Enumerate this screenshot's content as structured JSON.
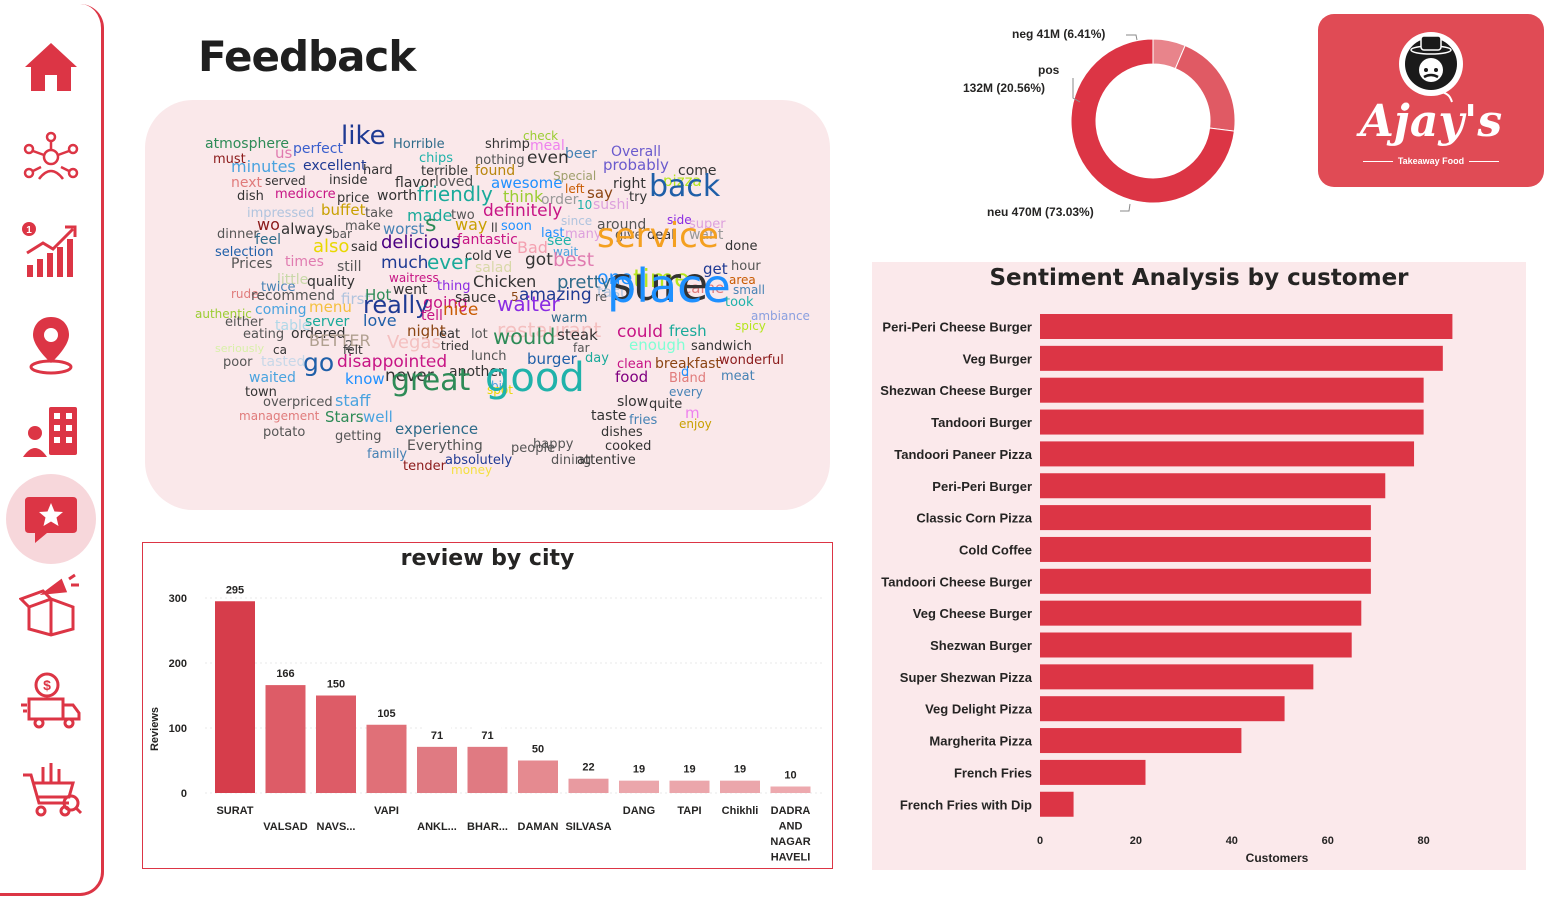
{
  "page": {
    "title": "Feedback"
  },
  "nav": [
    {
      "name": "home-icon"
    },
    {
      "name": "customers-icon"
    },
    {
      "name": "sales-trend-icon"
    },
    {
      "name": "location-icon"
    },
    {
      "name": "employees-icon"
    },
    {
      "name": "feedback-icon"
    },
    {
      "name": "marketing-icon"
    },
    {
      "name": "delivery-icon"
    },
    {
      "name": "inventory-icon"
    }
  ],
  "logo": {
    "brand": "Ajay's",
    "tagline": "Takeaway Food"
  },
  "donut": {
    "slices": [
      {
        "label": "neg",
        "value_text": "41M",
        "pct_text": "(6.41%)",
        "pct": 6.41,
        "color": "#e8848b"
      },
      {
        "label": "pos",
        "value_text": "132M",
        "pct_text": "(20.56%)",
        "pct": 20.56,
        "color": "#e05a64"
      },
      {
        "label": "neu",
        "value_text": "470M",
        "pct_text": "(73.03%)",
        "pct": 73.03,
        "color": "#dc3545"
      }
    ],
    "labels": {
      "neg": "neg 41M (6.41%)",
      "pos_name": "pos",
      "pos_value": "132M (20.56%)",
      "neu": "neu 470M (73.03%)"
    }
  },
  "wordcloud": {
    "words": [
      {
        "t": "atmosphere",
        "c": "#2e8b57"
      },
      {
        "t": "like",
        "c": "#1f3a93"
      },
      {
        "t": "Horrible",
        "c": "#2e6b8a"
      },
      {
        "t": "shrimp",
        "c": "#333"
      },
      {
        "t": "check",
        "c": "#9acd32"
      },
      {
        "t": "meal",
        "c": "#ee82ee"
      },
      {
        "t": "beer",
        "c": "#4682b4"
      },
      {
        "t": "Overall",
        "c": "#6a5acd"
      },
      {
        "t": "must",
        "c": "#8b1a1a"
      },
      {
        "t": "us",
        "c": "#e07bb0"
      },
      {
        "t": "perfect",
        "c": "#3a5fcd"
      },
      {
        "t": "chips",
        "c": "#20b2aa"
      },
      {
        "t": "nothing",
        "c": "#555"
      },
      {
        "t": "even",
        "c": "#333"
      },
      {
        "t": "probably",
        "c": "#6a5acd"
      },
      {
        "t": "minutes",
        "c": "#4aa3df"
      },
      {
        "t": "excellent",
        "c": "#1f3a93"
      },
      {
        "t": "hard",
        "c": "#333"
      },
      {
        "t": "terrible",
        "c": "#333"
      },
      {
        "t": "found",
        "c": "#b8860b"
      },
      {
        "t": "Special",
        "c": "#9e9e6a"
      },
      {
        "t": "come",
        "c": "#333"
      },
      {
        "t": "next",
        "c": "#e07b7b"
      },
      {
        "t": "served",
        "c": "#333"
      },
      {
        "t": "inside",
        "c": "#333"
      },
      {
        "t": "flavor",
        "c": "#333"
      },
      {
        "t": "loved",
        "c": "#555"
      },
      {
        "t": "awesome",
        "c": "#1e90ff"
      },
      {
        "t": "left",
        "c": "#c85a00"
      },
      {
        "t": "right",
        "c": "#333"
      },
      {
        "t": "pizza",
        "c": "#b5e61d"
      },
      {
        "t": "dish",
        "c": "#333"
      },
      {
        "t": "mediocre",
        "c": "#c71585"
      },
      {
        "t": "price",
        "c": "#333"
      },
      {
        "t": "worth",
        "c": "#333"
      },
      {
        "t": "friendly",
        "c": "#1aaa9a"
      },
      {
        "t": "think",
        "c": "#9acd32"
      },
      {
        "t": "order",
        "c": "#999"
      },
      {
        "t": "say",
        "c": "#8b4513"
      },
      {
        "t": "try",
        "c": "#333"
      },
      {
        "t": "back",
        "c": "#1f5fa8"
      },
      {
        "t": "impressed",
        "c": "#b0c4de"
      },
      {
        "t": "buffet",
        "c": "#c8a000"
      },
      {
        "t": "take",
        "c": "#555"
      },
      {
        "t": "made",
        "c": "#1aaa9a"
      },
      {
        "t": "two",
        "c": "#555"
      },
      {
        "t": "definitely",
        "c": "#c71585"
      },
      {
        "t": "10",
        "c": "#20b2aa"
      },
      {
        "t": "sushi",
        "c": "#dda0dd"
      },
      {
        "t": "dinner",
        "c": "#555"
      },
      {
        "t": "wo",
        "c": "#8b1a1a"
      },
      {
        "t": "always",
        "c": "#333"
      },
      {
        "t": "bar",
        "c": "#555"
      },
      {
        "t": "make",
        "c": "#555"
      },
      {
        "t": "worst",
        "c": "#4682b4"
      },
      {
        "t": "s",
        "c": "#2e8b57"
      },
      {
        "t": "way",
        "c": "#c8a000"
      },
      {
        "t": "ll",
        "c": "#333"
      },
      {
        "t": "soon",
        "c": "#1e90ff"
      },
      {
        "t": "since",
        "c": "#b0c4de"
      },
      {
        "t": "around",
        "c": "#555"
      },
      {
        "t": "side",
        "c": "#8a2be2"
      },
      {
        "t": "super",
        "c": "#dda0dd"
      },
      {
        "t": "feel",
        "c": "#2e6b8a"
      },
      {
        "t": "fantastic",
        "c": "#c71585"
      },
      {
        "t": "last",
        "c": "#1e90ff"
      },
      {
        "t": "many",
        "c": "#dda0dd"
      },
      {
        "t": "give",
        "c": "#555"
      },
      {
        "t": "deal",
        "c": "#333"
      },
      {
        "t": "want",
        "c": "#999"
      },
      {
        "t": "done",
        "c": "#333"
      },
      {
        "t": "selection",
        "c": "#1f5fa8"
      },
      {
        "t": "also",
        "c": "#e8d800"
      },
      {
        "t": "said",
        "c": "#333"
      },
      {
        "t": "delicious",
        "c": "#4b0082"
      },
      {
        "t": "cold",
        "c": "#333"
      },
      {
        "t": "ve",
        "c": "#333"
      },
      {
        "t": "Bad",
        "c": "#f4a0b0"
      },
      {
        "t": "wait",
        "c": "#4aa3df"
      },
      {
        "t": "see",
        "c": "#20b2aa"
      },
      {
        "t": "service",
        "c": "#f4a020"
      },
      {
        "t": "Prices",
        "c": "#555"
      },
      {
        "t": "times",
        "c": "#e07bb0"
      },
      {
        "t": "still",
        "c": "#555"
      },
      {
        "t": "much",
        "c": "#1f3a93"
      },
      {
        "t": "ever",
        "c": "#1aaa9a"
      },
      {
        "t": "salad",
        "c": "#d8d8a8"
      },
      {
        "t": "got",
        "c": "#333"
      },
      {
        "t": "best",
        "c": "#e07bb0"
      },
      {
        "t": "hour",
        "c": "#555"
      },
      {
        "t": "little",
        "c": "#c8d8a8"
      },
      {
        "t": "waitress",
        "c": "#c71585"
      },
      {
        "t": "one",
        "c": "#1e90ff"
      },
      {
        "t": "time",
        "c": "#b5e61d"
      },
      {
        "t": "get",
        "c": "#1f3a93"
      },
      {
        "t": "area",
        "c": "#c85a00"
      },
      {
        "t": "rude",
        "c": "#e07b7b"
      },
      {
        "t": "twice",
        "c": "#4682b4"
      },
      {
        "t": "quality",
        "c": "#333"
      },
      {
        "t": "went",
        "c": "#333"
      },
      {
        "t": "thing",
        "c": "#8a2be2"
      },
      {
        "t": "Chicken",
        "c": "#333"
      },
      {
        "t": "pretty",
        "c": "#2e6b8a"
      },
      {
        "t": "tasty",
        "c": "#b0c4de"
      },
      {
        "t": "came",
        "c": "#e07b7b"
      },
      {
        "t": "small",
        "c": "#4682b4"
      },
      {
        "t": "recommend",
        "c": "#555"
      },
      {
        "t": "first",
        "c": "#b0c4de"
      },
      {
        "t": "Hot",
        "c": "#2e8b57"
      },
      {
        "t": "going",
        "c": "#c71585"
      },
      {
        "t": "sauce",
        "c": "#333"
      },
      {
        "t": "5",
        "c": "#8b4513"
      },
      {
        "t": "amazing",
        "c": "#1f3a93"
      },
      {
        "t": "re",
        "c": "#555"
      },
      {
        "t": "sure",
        "c": "#333"
      },
      {
        "t": "authentic",
        "c": "#9acd32"
      },
      {
        "t": "coming",
        "c": "#4aa3df"
      },
      {
        "t": "menu",
        "c": "#f4c040"
      },
      {
        "t": "really",
        "c": "#1f3a93"
      },
      {
        "t": "tell",
        "c": "#c71585"
      },
      {
        "t": "nice",
        "c": "#c85a00"
      },
      {
        "t": "waiter",
        "c": "#8a2be2"
      },
      {
        "t": "warm",
        "c": "#2e6b8a"
      },
      {
        "t": "place",
        "c": "#1e90ff"
      },
      {
        "t": "took",
        "c": "#20b2aa"
      },
      {
        "t": "ambiance",
        "c": "#8a9fdf"
      },
      {
        "t": "either",
        "c": "#555"
      },
      {
        "t": "table",
        "c": "#b0d8e8"
      },
      {
        "t": "server",
        "c": "#1aaa9a"
      },
      {
        "t": "love",
        "c": "#1f5fa8"
      },
      {
        "t": "restaurant",
        "c": "#f4c0c0"
      },
      {
        "t": "spicy",
        "c": "#b5e61d"
      },
      {
        "t": "eating",
        "c": "#555"
      },
      {
        "t": "ordered",
        "c": "#333"
      },
      {
        "t": "2",
        "c": "#555"
      },
      {
        "t": "night",
        "c": "#8b4513"
      },
      {
        "t": "eat",
        "c": "#333"
      },
      {
        "t": "lot",
        "c": "#555"
      },
      {
        "t": "would",
        "c": "#2e8b57"
      },
      {
        "t": "steak",
        "c": "#333"
      },
      {
        "t": "could",
        "c": "#c71585"
      },
      {
        "t": "fresh",
        "c": "#1aaa9a"
      },
      {
        "t": "seriously",
        "c": "#d8f0a8"
      },
      {
        "t": "ca",
        "c": "#333"
      },
      {
        "t": "BETTER",
        "c": "#b0a090"
      },
      {
        "t": "felt",
        "c": "#333"
      },
      {
        "t": "Vegas",
        "c": "#f4c0c0"
      },
      {
        "t": "tried",
        "c": "#333"
      },
      {
        "t": "far",
        "c": "#555"
      },
      {
        "t": "enough",
        "c": "#7fffd4"
      },
      {
        "t": "sandwich",
        "c": "#333"
      },
      {
        "t": "poor",
        "c": "#555"
      },
      {
        "t": "tasted",
        "c": "#c8d8e8"
      },
      {
        "t": "disappointed",
        "c": "#c71585"
      },
      {
        "t": "lunch",
        "c": "#555"
      },
      {
        "t": "burger",
        "c": "#1f5fa8"
      },
      {
        "t": "day",
        "c": "#1aaa9a"
      },
      {
        "t": "clean",
        "c": "#c71585"
      },
      {
        "t": "breakfast",
        "c": "#8b4513"
      },
      {
        "t": "wonderful",
        "c": "#8b1a1a"
      },
      {
        "t": "waited",
        "c": "#4aa3df"
      },
      {
        "t": "go",
        "c": "#1f5fa8"
      },
      {
        "t": "know",
        "c": "#1e90ff"
      },
      {
        "t": "never",
        "c": "#333"
      },
      {
        "t": "another",
        "c": "#333"
      },
      {
        "t": "food",
        "c": "#800080"
      },
      {
        "t": "Bland",
        "c": "#e07b7b"
      },
      {
        "t": "d",
        "c": "#1e90ff"
      },
      {
        "t": "meat",
        "c": "#4682b4"
      },
      {
        "t": "town",
        "c": "#333"
      },
      {
        "t": "bit",
        "c": "#4aa3df"
      },
      {
        "t": "every",
        "c": "#4682b4"
      },
      {
        "t": "overpriced",
        "c": "#555"
      },
      {
        "t": "staff",
        "c": "#4aa3df"
      },
      {
        "t": "great",
        "c": "#2e8b57"
      },
      {
        "t": "spot",
        "c": "#e8d800"
      },
      {
        "t": "slow",
        "c": "#333"
      },
      {
        "t": "quite",
        "c": "#333"
      },
      {
        "t": "management",
        "c": "#e07b7b"
      },
      {
        "t": "Stars",
        "c": "#2e8b57"
      },
      {
        "t": "well",
        "c": "#4aa3df"
      },
      {
        "t": "good",
        "c": "#20b2aa"
      },
      {
        "t": "taste",
        "c": "#333"
      },
      {
        "t": "fries",
        "c": "#4682b4"
      },
      {
        "t": "m",
        "c": "#ee82ee"
      },
      {
        "t": "enjoy",
        "c": "#c8a000"
      },
      {
        "t": "potato",
        "c": "#555"
      },
      {
        "t": "getting",
        "c": "#555"
      },
      {
        "t": "experience",
        "c": "#2e6b8a"
      },
      {
        "t": "dishes",
        "c": "#333"
      },
      {
        "t": "happy",
        "c": "#555"
      },
      {
        "t": "cooked",
        "c": "#333"
      },
      {
        "t": "family",
        "c": "#4682b4"
      },
      {
        "t": "Everything",
        "c": "#555"
      },
      {
        "t": "people",
        "c": "#555"
      },
      {
        "t": "dining",
        "c": "#555"
      },
      {
        "t": "attentive",
        "c": "#333"
      },
      {
        "t": "tender",
        "c": "#8b1a1a"
      },
      {
        "t": "absolutely",
        "c": "#1f3a93"
      },
      {
        "t": "money",
        "c": "#f4e040"
      }
    ]
  },
  "city_chart": {
    "title": "review by city",
    "chart_data": {
      "type": "bar",
      "categories": [
        "SURAT",
        "VALSAD",
        "NAVS...",
        "VAPI",
        "ANKL...",
        "BHAR...",
        "DAMAN",
        "SILVASA",
        "DANG",
        "TAPI",
        "Chikhli",
        "DADRA AND NAGAR HAVELI"
      ],
      "category_lines": [
        [
          "SURAT"
        ],
        [
          "VALSAD"
        ],
        [
          "NAVS..."
        ],
        [
          "VAPI"
        ],
        [
          "ANKL..."
        ],
        [
          "BHAR..."
        ],
        [
          "DAMAN"
        ],
        [
          "SILVASA"
        ],
        [
          "DANG"
        ],
        [
          "TAPI"
        ],
        [
          "Chikhli"
        ],
        [
          "DADRA",
          "AND",
          "NAGAR",
          "HAVELI"
        ]
      ],
      "values": [
        295,
        166,
        150,
        105,
        71,
        71,
        50,
        22,
        19,
        19,
        19,
        10
      ],
      "ylabel": "Reviews",
      "ylim": [
        0,
        320
      ],
      "yticks": [
        0,
        100,
        200,
        300
      ],
      "bar_colors": [
        "#d63d4b",
        "#dd5c67",
        "#dd5c67",
        "#e07078",
        "#e07a82",
        "#e07a82",
        "#e58a90",
        "#e89aa0",
        "#eba6ab",
        "#eba6ab",
        "#eba6ab",
        "#eda9ae"
      ]
    }
  },
  "sentiment_chart": {
    "title": "Sentiment Analysis by customer",
    "chart_data": {
      "type": "bar",
      "orientation": "horizontal",
      "categories": [
        "Peri-Peri Cheese Burger",
        "Veg Burger",
        "Shezwan Cheese Burger",
        "Tandoori Burger",
        "Tandoori Paneer Pizza",
        "Peri-Peri Burger",
        "Classic Corn Pizza",
        "Cold Coffee",
        "Tandoori Cheese Burger",
        "Veg Cheese Burger",
        "Shezwan Burger",
        "Super Shezwan Pizza",
        "Veg Delight Pizza",
        "Margherita Pizza",
        "French Fries",
        "French Fries with Dip"
      ],
      "values": [
        86,
        84,
        80,
        80,
        78,
        72,
        69,
        69,
        69,
        67,
        65,
        57,
        51,
        42,
        22,
        7
      ],
      "xlabel": "Customers",
      "xlim": [
        0,
        88
      ],
      "xticks": [
        0,
        20,
        40,
        60,
        80
      ],
      "color": "#dc3545"
    }
  }
}
